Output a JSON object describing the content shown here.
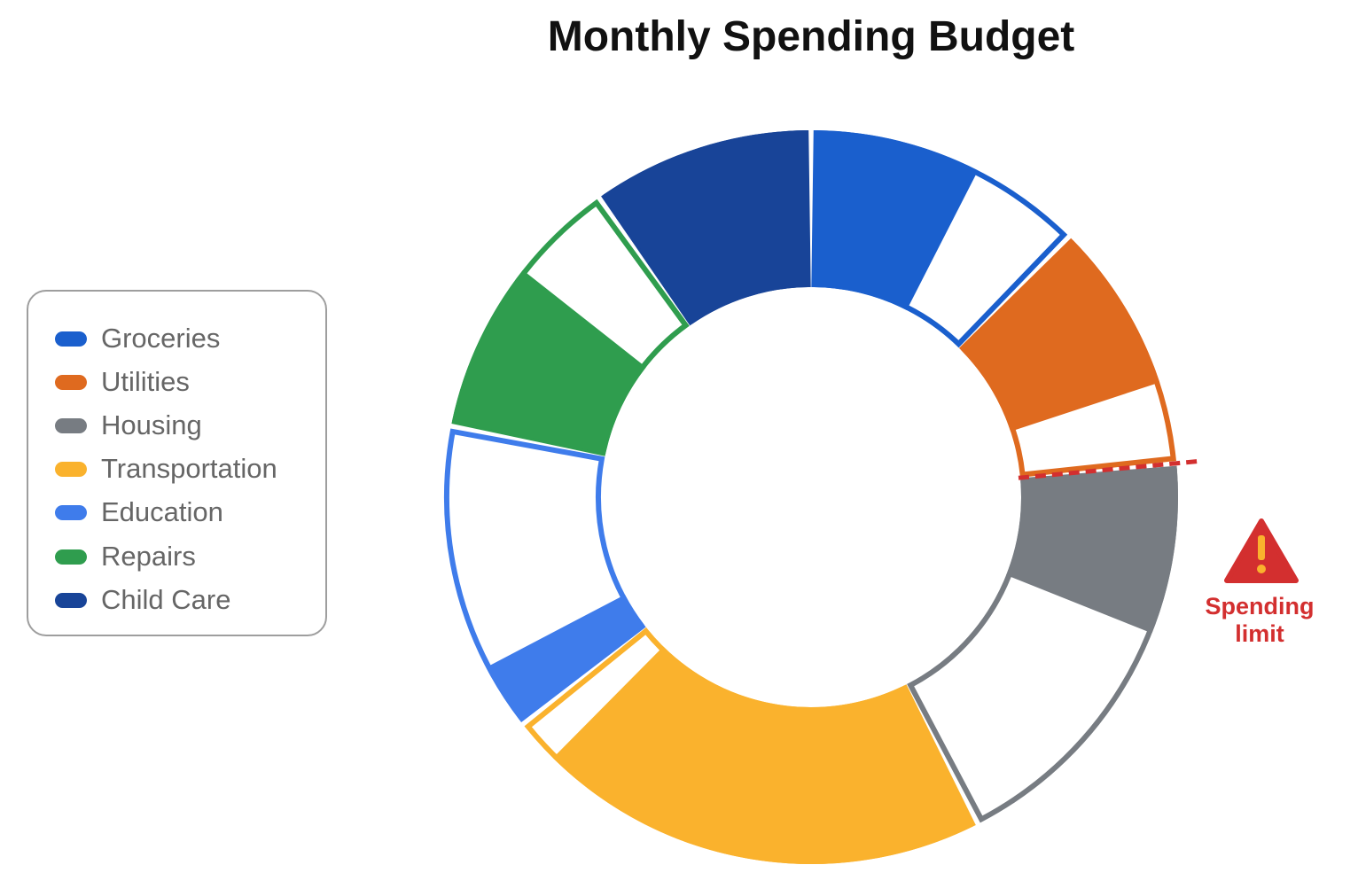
{
  "chart_data": {
    "type": "pie",
    "title": "Monthly Spending Budget",
    "legend_position": "left",
    "segments": [
      {
        "name": "Groceries",
        "color": "#1a5fcd",
        "spent": 23,
        "budget": 38
      },
      {
        "name": "Utilities",
        "color": "#df6a1f",
        "spent": 23,
        "budget": 34
      },
      {
        "name": "Housing",
        "color": "#777c82",
        "spent": 23,
        "budget": 58
      },
      {
        "name": "Transportation",
        "color": "#fab22d",
        "spent": 61,
        "budget": 67
      },
      {
        "name": "Education",
        "color": "#3f7ceb",
        "spent": 9,
        "budget": 42
      },
      {
        "name": "Repairs",
        "color": "#2f9d4e",
        "spent": 23,
        "budget": 37
      },
      {
        "name": "Child Care",
        "color": "#184498",
        "spent": 30,
        "budget": 30
      }
    ],
    "annotation": {
      "text_line1": "Spending",
      "text_line2": "limit",
      "icon": "warning-triangle-icon",
      "color": "#d32f2f"
    }
  }
}
